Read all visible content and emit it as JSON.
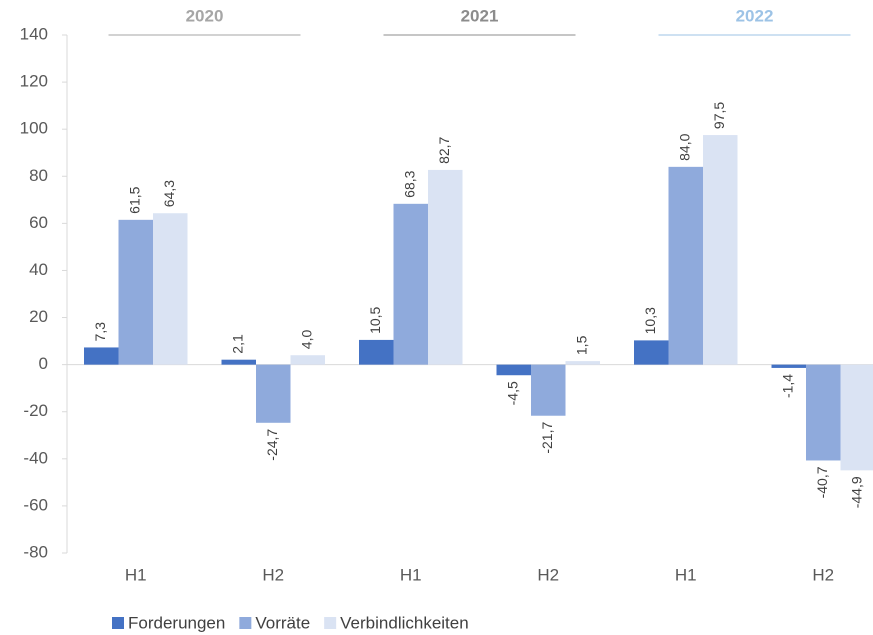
{
  "chart_data": {
    "type": "bar",
    "categories": [
      "H1",
      "H2",
      "H1",
      "H2",
      "H1",
      "H2"
    ],
    "groups": [
      {
        "label": "2020",
        "color": "#a6a6a6"
      },
      {
        "label": "2021",
        "color": "#8c8c8c"
      },
      {
        "label": "2022",
        "color": "#9dc3e6"
      }
    ],
    "series": [
      {
        "name": "Forderungen",
        "color": "#4472c4",
        "values": [
          7.3,
          2.1,
          10.5,
          -4.5,
          10.3,
          -1.4
        ],
        "value_labels": [
          "7,3",
          "2,1",
          "10,5",
          "-4,5",
          "10,3",
          "-1,4"
        ]
      },
      {
        "name": "Vorräte",
        "color": "#8faadc",
        "values": [
          61.5,
          -24.7,
          68.3,
          -21.7,
          84.0,
          -40.7
        ],
        "value_labels": [
          "61,5",
          "-24,7",
          "68,3",
          "-21,7",
          "84,0",
          "-40,7"
        ]
      },
      {
        "name": "Verbindlichkeiten",
        "color": "#dae3f3",
        "values": [
          64.3,
          4.0,
          82.7,
          1.5,
          97.5,
          -44.9
        ],
        "value_labels": [
          "64,3",
          "4,0",
          "82,7",
          "1,5",
          "97,5",
          "-44,9"
        ]
      }
    ],
    "ylim": [
      -80,
      140
    ],
    "yticks": [
      -80,
      -60,
      -40,
      -20,
      0,
      20,
      40,
      60,
      80,
      100,
      120,
      140
    ],
    "legend": "bottom"
  }
}
